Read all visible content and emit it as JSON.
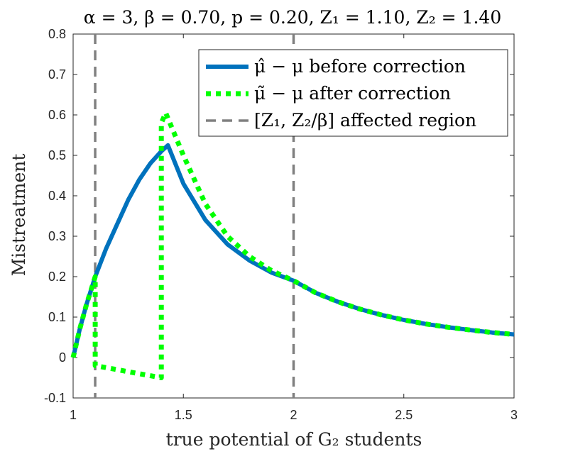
{
  "chart_data": {
    "type": "line",
    "title": "α = 3, β = 0.70, p = 0.20, Z₁ = 1.10, Z₂ = 1.40",
    "xlabel": "true potential of G₂ students",
    "ylabel": "Mistreatment",
    "xlim": [
      1,
      3
    ],
    "ylim": [
      -0.1,
      0.8
    ],
    "x_ticks": [
      "1",
      "1.5",
      "2",
      "2.5",
      "3"
    ],
    "x_tick_values": [
      1,
      1.5,
      2,
      2.5,
      3
    ],
    "y_ticks": [
      "-0.1",
      "0",
      "0.1",
      "0.2",
      "0.3",
      "0.4",
      "0.5",
      "0.6",
      "0.7",
      "0.8"
    ],
    "y_tick_values": [
      -0.1,
      0,
      0.1,
      0.2,
      0.3,
      0.4,
      0.5,
      0.6,
      0.7,
      0.8
    ],
    "legend_position": "top-right",
    "series": [
      {
        "name": "μ̂ − μ before correction",
        "color": "#0072BD",
        "style": "solid",
        "x": [
          1.0,
          1.03,
          1.06,
          1.1,
          1.15,
          1.2,
          1.25,
          1.3,
          1.35,
          1.4,
          1.43,
          1.5,
          1.6,
          1.7,
          1.8,
          1.9,
          2.0,
          2.1,
          2.2,
          2.3,
          2.4,
          2.5,
          2.6,
          2.7,
          2.8,
          2.9,
          3.0
        ],
        "values": [
          0.0,
          0.07,
          0.13,
          0.2,
          0.27,
          0.33,
          0.39,
          0.44,
          0.48,
          0.51,
          0.525,
          0.43,
          0.34,
          0.28,
          0.24,
          0.21,
          0.19,
          0.16,
          0.138,
          0.12,
          0.105,
          0.093,
          0.083,
          0.075,
          0.068,
          0.062,
          0.057
        ]
      },
      {
        "name": "μ̃ − μ after correction",
        "color": "#00FF00",
        "style": "dotted",
        "x": [
          1.0,
          1.03,
          1.06,
          1.1,
          1.1,
          1.15,
          1.2,
          1.25,
          1.3,
          1.35,
          1.4,
          1.4,
          1.42,
          1.5,
          1.6,
          1.7,
          1.8,
          1.9,
          2.0,
          2.1,
          2.2,
          2.3,
          2.4,
          2.5,
          2.6,
          2.7,
          2.8,
          2.9,
          3.0
        ],
        "values": [
          0.0,
          0.07,
          0.13,
          0.2,
          -0.02,
          -0.025,
          -0.03,
          -0.035,
          -0.04,
          -0.045,
          -0.05,
          0.58,
          0.605,
          0.5,
          0.38,
          0.3,
          0.25,
          0.215,
          0.19,
          0.16,
          0.138,
          0.12,
          0.105,
          0.093,
          0.083,
          0.075,
          0.068,
          0.062,
          0.057
        ]
      }
    ],
    "vertical_lines": [
      {
        "name": "[Z₁, Z₂/β] affected region",
        "x": 1.1,
        "color": "#808080",
        "style": "dashed"
      },
      {
        "name": "[Z₁, Z₂/β] affected region",
        "x": 2.0,
        "color": "#808080",
        "style": "dashed"
      }
    ],
    "legend": [
      {
        "label": "μ̂ − μ before correction",
        "color": "#0072BD",
        "style": "solid"
      },
      {
        "label": "μ̃ − μ after correction",
        "color": "#00FF00",
        "style": "dotted"
      },
      {
        "label": "[Z₁, Z₂/β] affected region",
        "color": "#808080",
        "style": "dashed"
      }
    ]
  }
}
